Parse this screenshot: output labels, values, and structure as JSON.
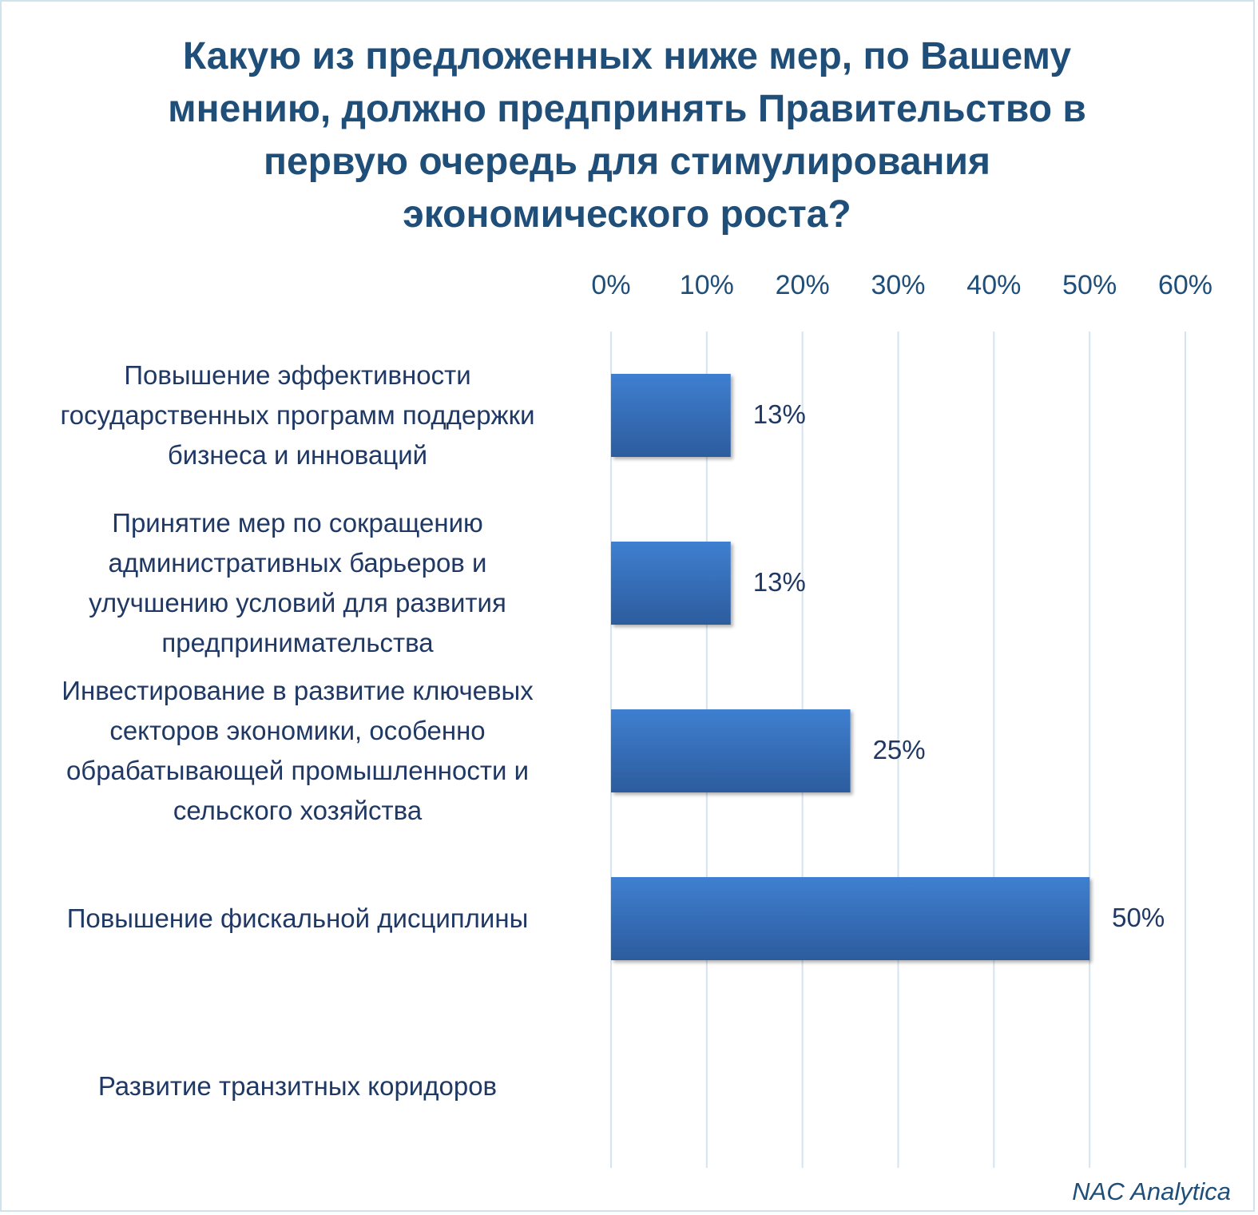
{
  "chart_data": {
    "type": "bar",
    "orientation": "horizontal",
    "title": "Какую из предложенных ниже мер, по Вашему\nмнению, должно предпринять Правительство в\nпервую очередь для стимулирования\nэкономического роста?",
    "categories": [
      "Повышение эффективности\nгосударственных программ поддержки\nбизнеса и инноваций",
      "Принятие мер по сокращению\nадминистративных барьеров и\nулучшению условий для развития\nпредпринимательства",
      "Инвестирование в развитие ключевых\nсекторов экономики, особенно\nобрабатывающей промышленности и\nсельского хозяйства",
      "Повышение фискальной дисциплины",
      "Развитие транзитных коридоров"
    ],
    "values": [
      12.5,
      12.5,
      25,
      50,
      0
    ],
    "data_labels": [
      "13%",
      "13%",
      "25%",
      "50%",
      ""
    ],
    "xlim": [
      0,
      60
    ],
    "ticks": [
      0,
      10,
      20,
      30,
      40,
      50,
      60
    ],
    "tick_labels": [
      "0%",
      "10%",
      "20%",
      "30%",
      "40%",
      "50%",
      "60%"
    ],
    "grid": true,
    "axis_position": "top",
    "legend": "none",
    "colors": {
      "bar": "#3a77c4",
      "bar_dark": "#2a5a9c",
      "grid": "#d6e4f0",
      "title": "#1f4e79"
    }
  },
  "footer": {
    "source": "NAC Analytica"
  }
}
